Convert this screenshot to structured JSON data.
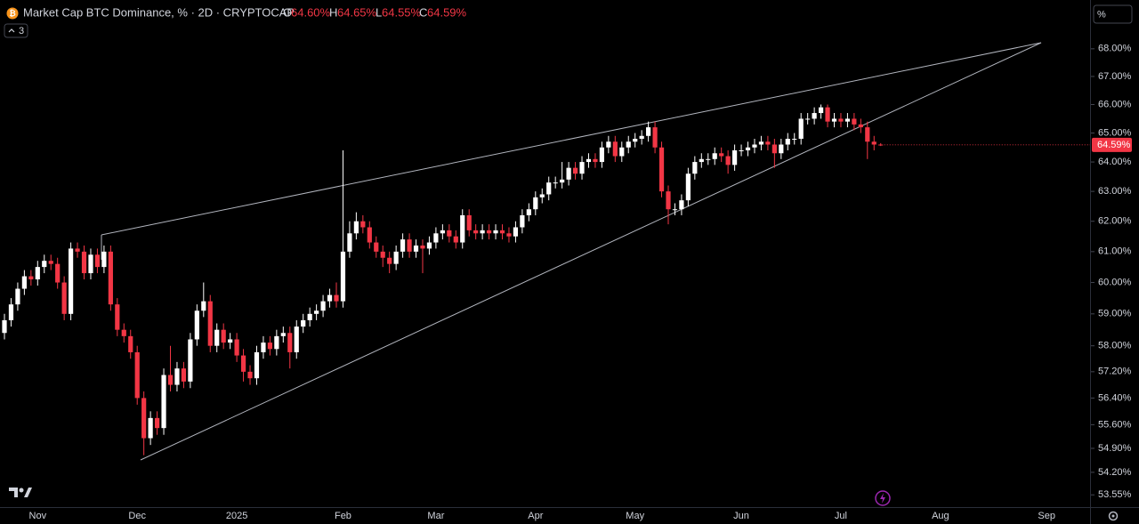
{
  "chart_data": {
    "type": "candlestick",
    "title": "Market Cap BTC Dominance, % · 2D · CRYPTOCAP",
    "legend": {
      "open_label": "O",
      "open_text": "64.60%",
      "high_label": "H",
      "high_text": "64.65%",
      "low_label": "L",
      "low_text": "64.55%",
      "close_label": "C",
      "close_text": "64.59%"
    },
    "indicator_count": "3",
    "scale_button": "%",
    "last_price_label": "64.59%",
    "up_color": "#ffffff",
    "down_color": "#f23645",
    "log_scale": true,
    "ylim": [
      53.2,
      69.8
    ],
    "yticks": [
      {
        "value": 68,
        "label": "68.00%"
      },
      {
        "value": 67,
        "label": "67.00%"
      },
      {
        "value": 66,
        "label": "66.00%"
      },
      {
        "value": 65,
        "label": "65.00%"
      },
      {
        "value": 64,
        "label": "64.00%"
      },
      {
        "value": 63,
        "label": "63.00%"
      },
      {
        "value": 62,
        "label": "62.00%"
      },
      {
        "value": 61,
        "label": "61.00%"
      },
      {
        "value": 60,
        "label": "60.00%"
      },
      {
        "value": 59,
        "label": "59.00%"
      },
      {
        "value": 58,
        "label": "58.00%"
      },
      {
        "value": 57.2,
        "label": "57.20%"
      },
      {
        "value": 56.4,
        "label": "56.40%"
      },
      {
        "value": 55.6,
        "label": "55.60%"
      },
      {
        "value": 54.9,
        "label": "54.90%"
      },
      {
        "value": 54.2,
        "label": "54.20%"
      },
      {
        "value": 53.55,
        "label": "53.55%"
      }
    ],
    "categories": [
      null,
      null,
      null,
      null,
      null,
      "Nov",
      null,
      null,
      null,
      null,
      null,
      null,
      null,
      null,
      null,
      null,
      null,
      null,
      null,
      null,
      "Dec",
      null,
      null,
      null,
      null,
      null,
      null,
      null,
      null,
      null,
      null,
      null,
      null,
      null,
      null,
      "2025",
      null,
      null,
      null,
      null,
      null,
      null,
      null,
      null,
      null,
      null,
      null,
      null,
      null,
      null,
      null,
      "Feb",
      null,
      null,
      null,
      null,
      null,
      null,
      null,
      null,
      null,
      null,
      null,
      null,
      null,
      "Mar",
      null,
      null,
      null,
      null,
      null,
      null,
      null,
      null,
      null,
      null,
      null,
      null,
      null,
      null,
      "Apr",
      null,
      null,
      null,
      null,
      null,
      null,
      null,
      null,
      null,
      null,
      null,
      null,
      null,
      null,
      "May",
      null,
      null,
      null,
      null,
      null,
      null,
      null,
      null,
      null,
      null,
      null,
      null,
      null,
      null,
      null,
      "Jun",
      null,
      null,
      null,
      null,
      null,
      null,
      null,
      null,
      null,
      null,
      null,
      null,
      null,
      null,
      "Jul",
      null,
      null,
      null,
      null,
      null,
      null,
      null,
      null,
      null,
      null,
      null,
      null,
      null,
      null,
      "Aug",
      null,
      null,
      null,
      null,
      null,
      null,
      null,
      null,
      null,
      null,
      null,
      null,
      null,
      null,
      null,
      "Sep",
      null,
      null
    ],
    "open": [
      58.4,
      58.8,
      59.3,
      59.8,
      60.2,
      60.1,
      60.5,
      60.7,
      60.6,
      60.0,
      59.0,
      61.1,
      61.0,
      60.3,
      60.9,
      60.5,
      61.0,
      59.3,
      58.5,
      58.3,
      57.8,
      56.4,
      55.2,
      55.8,
      55.5,
      57.1,
      56.8,
      57.3,
      56.9,
      58.2,
      59.1,
      59.4,
      58.0,
      58.5,
      58.1,
      58.2,
      57.7,
      57.2,
      57.0,
      57.8,
      58.1,
      57.9,
      58.3,
      58.4,
      57.8,
      58.6,
      58.8,
      59.0,
      59.1,
      59.4,
      59.6,
      59.4,
      61.0,
      61.6,
      62.0,
      61.8,
      61.3,
      61.0,
      60.8,
      60.6,
      61.0,
      61.4,
      61.0,
      61.2,
      61.1,
      61.3,
      61.6,
      61.7,
      61.5,
      61.3,
      62.2,
      61.7,
      61.6,
      61.7,
      61.6,
      61.7,
      61.6,
      61.5,
      61.8,
      62.2,
      62.4,
      62.8,
      62.9,
      63.3,
      63.3,
      63.4,
      63.8,
      63.6,
      64.0,
      64.1,
      64.0,
      64.5,
      64.7,
      64.2,
      64.5,
      64.7,
      64.8,
      64.9,
      65.2,
      64.5,
      63.0,
      62.4,
      62.4,
      62.7,
      63.6,
      64.0,
      64.1,
      64.1,
      64.3,
      64.2,
      63.9,
      64.4,
      64.4,
      64.5,
      64.6,
      64.7,
      64.6,
      64.3,
      64.6,
      64.8,
      64.8,
      65.5,
      65.5,
      65.7,
      65.9,
      65.4,
      65.5,
      65.4,
      65.5,
      65.3,
      65.2,
      64.7,
      64.6,
      null,
      null,
      null,
      null,
      null,
      null,
      null,
      null,
      null,
      null,
      null,
      null,
      null,
      null,
      null,
      null,
      null,
      null,
      null,
      null,
      null,
      null,
      null,
      null,
      null,
      null,
      null
    ],
    "high": [
      59.0,
      59.5,
      60.0,
      60.4,
      60.4,
      60.7,
      60.9,
      60.9,
      60.8,
      60.2,
      61.3,
      61.3,
      61.2,
      61.1,
      61.1,
      61.2,
      61.2,
      59.5,
      58.7,
      58.5,
      58.0,
      56.6,
      56.0,
      56.0,
      57.3,
      58.0,
      57.5,
      57.5,
      58.4,
      59.3,
      60.0,
      59.6,
      58.7,
      58.7,
      58.4,
      58.4,
      57.9,
      57.4,
      58.0,
      58.3,
      58.3,
      58.5,
      58.6,
      58.6,
      58.8,
      59.0,
      59.2,
      59.3,
      59.6,
      59.8,
      60.0,
      64.4,
      62.0,
      62.3,
      62.2,
      62.0,
      61.5,
      61.2,
      61.0,
      61.2,
      61.6,
      61.6,
      61.4,
      61.4,
      61.5,
      61.8,
      61.9,
      61.9,
      61.7,
      62.4,
      62.4,
      61.9,
      61.9,
      61.9,
      61.9,
      61.9,
      61.8,
      62.0,
      62.4,
      62.6,
      63.0,
      63.1,
      63.5,
      63.5,
      64.0,
      64.0,
      64.0,
      64.2,
      64.3,
      64.3,
      64.7,
      64.9,
      64.9,
      64.7,
      64.9,
      65.0,
      65.1,
      65.4,
      65.4,
      64.7,
      63.2,
      62.6,
      62.9,
      63.8,
      64.2,
      64.3,
      64.3,
      64.5,
      64.5,
      64.4,
      64.6,
      64.6,
      64.7,
      64.8,
      64.9,
      64.9,
      64.8,
      64.8,
      65.0,
      65.0,
      65.7,
      65.7,
      65.9,
      66.0,
      66.0,
      65.7,
      65.7,
      65.7,
      65.7,
      65.5,
      65.4,
      64.9,
      64.65,
      null,
      null,
      null,
      null,
      null,
      null,
      null,
      null,
      null,
      null,
      null,
      null,
      null,
      null,
      null,
      null,
      null,
      null,
      null,
      null,
      null,
      null,
      null,
      null,
      null,
      null,
      null
    ],
    "low": [
      58.2,
      58.6,
      59.1,
      59.6,
      59.9,
      59.9,
      60.3,
      60.4,
      59.8,
      58.8,
      58.8,
      60.8,
      60.1,
      60.1,
      60.3,
      60.3,
      59.1,
      58.3,
      58.1,
      57.6,
      56.2,
      54.7,
      55.0,
      55.3,
      55.3,
      56.6,
      56.6,
      56.7,
      56.7,
      58.0,
      58.9,
      57.8,
      57.8,
      57.9,
      57.9,
      57.5,
      56.9,
      56.8,
      56.8,
      57.6,
      57.7,
      57.7,
      58.1,
      57.3,
      57.6,
      58.4,
      58.6,
      58.8,
      58.9,
      59.2,
      59.2,
      59.2,
      60.8,
      61.4,
      61.6,
      61.1,
      60.8,
      60.5,
      60.3,
      60.4,
      60.8,
      60.8,
      60.8,
      60.3,
      60.9,
      61.1,
      61.4,
      61.3,
      61.1,
      61.1,
      61.5,
      61.4,
      61.4,
      61.4,
      61.4,
      61.4,
      61.3,
      61.3,
      61.6,
      62.0,
      62.2,
      62.6,
      62.7,
      63.1,
      63.1,
      63.2,
      63.4,
      63.4,
      63.8,
      63.8,
      63.8,
      64.3,
      64.0,
      64.0,
      64.3,
      64.5,
      64.6,
      64.7,
      64.3,
      62.8,
      61.9,
      62.2,
      62.2,
      62.5,
      63.4,
      63.8,
      63.9,
      63.9,
      64.0,
      63.6,
      63.7,
      64.2,
      64.2,
      64.3,
      64.4,
      64.4,
      63.8,
      64.1,
      64.4,
      64.6,
      64.6,
      65.3,
      65.3,
      65.5,
      65.2,
      65.2,
      65.2,
      65.2,
      65.1,
      65.0,
      64.1,
      64.4,
      64.55,
      null,
      null,
      null,
      null,
      null,
      null,
      null,
      null,
      null,
      null,
      null,
      null,
      null,
      null,
      null,
      null,
      null,
      null,
      null,
      null,
      null,
      null,
      null,
      null,
      null,
      null,
      null
    ],
    "close": [
      58.8,
      59.3,
      59.8,
      60.2,
      60.1,
      60.5,
      60.7,
      60.6,
      60.0,
      59.0,
      61.1,
      61.0,
      60.3,
      60.9,
      60.5,
      61.0,
      59.3,
      58.5,
      58.3,
      57.8,
      56.4,
      55.2,
      55.8,
      55.5,
      57.1,
      56.8,
      57.3,
      56.9,
      58.2,
      59.1,
      59.4,
      58.0,
      58.5,
      58.1,
      58.2,
      57.7,
      57.2,
      57.0,
      57.8,
      58.1,
      57.9,
      58.3,
      58.4,
      57.8,
      58.6,
      58.8,
      59.0,
      59.1,
      59.4,
      59.6,
      59.4,
      61.0,
      61.6,
      62.0,
      61.8,
      61.3,
      61.0,
      60.8,
      60.6,
      61.0,
      61.4,
      61.0,
      61.2,
      61.1,
      61.3,
      61.6,
      61.7,
      61.5,
      61.3,
      62.2,
      61.7,
      61.6,
      61.7,
      61.6,
      61.7,
      61.6,
      61.5,
      61.8,
      62.2,
      62.4,
      62.8,
      62.9,
      63.3,
      63.3,
      63.4,
      63.8,
      63.6,
      64.0,
      64.1,
      64.0,
      64.5,
      64.7,
      64.2,
      64.5,
      64.7,
      64.8,
      64.9,
      65.2,
      64.5,
      63.0,
      62.4,
      62.4,
      62.7,
      63.6,
      64.0,
      64.1,
      64.1,
      64.3,
      64.2,
      63.9,
      64.4,
      64.4,
      64.5,
      64.6,
      64.7,
      64.6,
      64.3,
      64.6,
      64.8,
      64.8,
      65.5,
      65.5,
      65.7,
      65.9,
      65.4,
      65.5,
      65.4,
      65.5,
      65.3,
      65.2,
      64.7,
      64.6,
      64.59,
      null,
      null,
      null,
      null,
      null,
      null,
      null,
      null,
      null,
      null,
      null,
      null,
      null,
      null,
      null,
      null,
      null,
      null,
      null,
      null,
      null,
      null,
      null,
      null,
      null,
      null,
      null
    ]
  }
}
